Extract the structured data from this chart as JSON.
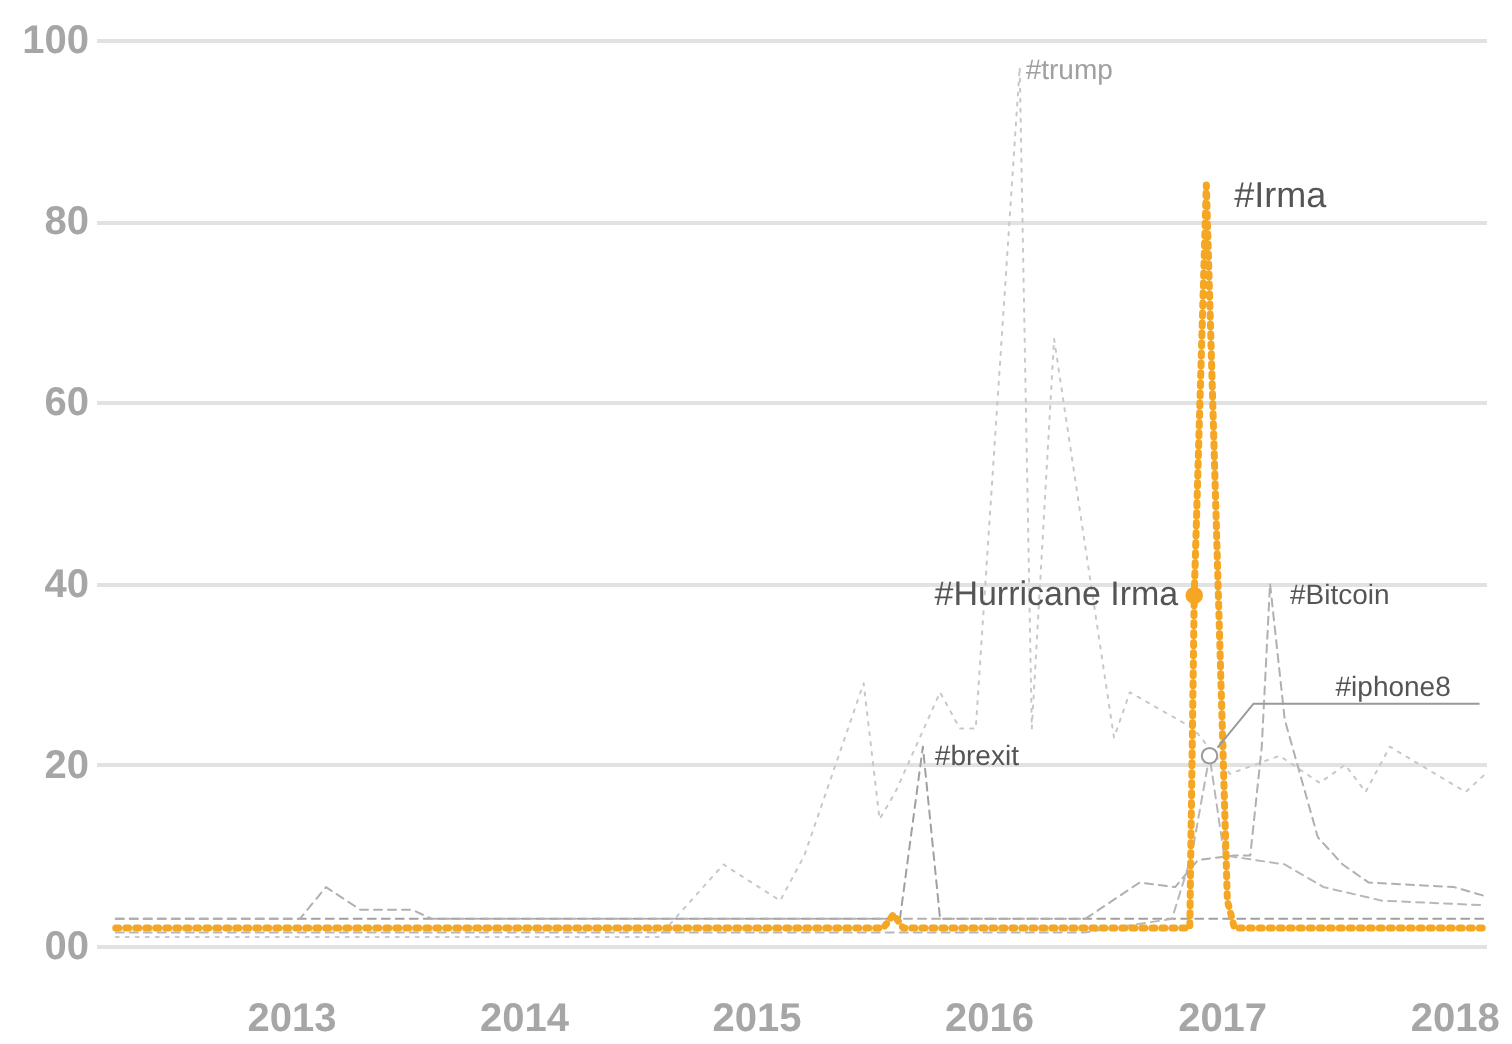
{
  "chart_data": {
    "type": "line",
    "xlim": [
      "2012-03-01",
      "2018-02-20"
    ],
    "xticks": [
      "2013",
      "2014",
      "2015",
      "2016",
      "2017",
      "2018"
    ],
    "ylim": [
      0,
      100
    ],
    "yticks": [
      {
        "value": 0,
        "label": "00"
      },
      20,
      40,
      60,
      80,
      100
    ],
    "grid": "y",
    "series": [
      {
        "name": "#trump",
        "color": "#c8c8c8",
        "line_style": "dotted",
        "x": [
          "2012-04-01",
          "2014-08-01",
          "2014-11-11",
          "2015-02-08",
          "2015-03-18",
          "2015-06-19",
          "2015-07-14",
          "2015-08-08",
          "2015-10-17",
          "2015-11-17",
          "2015-12-12",
          "2016-02-19",
          "2016-03-09",
          "2016-04-13",
          "2016-07-16",
          "2016-08-10",
          "2016-11-18",
          "2017-01-14",
          "2017-04-02",
          "2017-06-04",
          "2017-07-14",
          "2017-08-15",
          "2017-09-22",
          "2018-01-19",
          "2018-02-19"
        ],
        "values": [
          1,
          1,
          9,
          5,
          10,
          29,
          14,
          17,
          28,
          24,
          24,
          97,
          24,
          67,
          23,
          28,
          24,
          19,
          21,
          18,
          20,
          17,
          22,
          17,
          19
        ]
      },
      {
        "name": "#brexit",
        "color": "#a0a0a0",
        "line_style": "dashed",
        "x": [
          "2012-04-01",
          "2015-08-15",
          "2015-09-20",
          "2015-10-17",
          "2018-02-19"
        ],
        "values": [
          3,
          3,
          22,
          3,
          3
        ]
      },
      {
        "name": "#Bitcoin",
        "color": "#b0b0b0",
        "line_style": "dashed",
        "x": [
          "2012-04-01",
          "2013-01-15",
          "2013-02-25",
          "2013-04-20",
          "2013-07-10",
          "2013-08-10",
          "2016-06-01",
          "2016-08-25",
          "2016-10-20",
          "2016-11-25",
          "2017-01-20",
          "2017-02-15",
          "2017-03-05",
          "2017-03-18",
          "2017-04-10",
          "2017-06-01",
          "2017-07-10",
          "2017-08-20",
          "2018-01-01",
          "2018-02-19"
        ],
        "values": [
          3,
          3,
          6.5,
          4,
          4,
          3,
          3,
          7,
          6.5,
          9.5,
          10,
          10,
          22,
          40,
          25,
          12,
          9,
          7,
          6.5,
          5.5
        ]
      },
      {
        "color": "#b8b8b8",
        "line_style": "dashed",
        "x": [
          "2012-04-01",
          "2016-06-01",
          "2016-10-15",
          "2016-11-15",
          "2016-12-13",
          "2017-01-05",
          "2017-04-10",
          "2017-06-10",
          "2017-09-10",
          "2018-02-19"
        ],
        "values": [
          1.5,
          1.5,
          3,
          10,
          21,
          10,
          9,
          6.5,
          5,
          4.5
        ]
      },
      {
        "name": "#Irma",
        "color": "#f5a623",
        "line_style": "dotted",
        "x": [
          "2012-04-01",
          "2015-07-20",
          "2015-08-05",
          "2015-08-20",
          "2016-11-12",
          "2016-11-19",
          "2016-12-08",
          "2017-01-10",
          "2017-01-21",
          "2018-02-19"
        ],
        "values": [
          2,
          2,
          3.5,
          2,
          2,
          38.7,
          84,
          5,
          2,
          2
        ]
      }
    ],
    "annotations": [
      {
        "text": "#Hurricane Irma",
        "x": "2016-11-19",
        "y": 38.7
      },
      {
        "text": "#iphone8",
        "x": "2016-12-13",
        "y": 21
      }
    ]
  }
}
